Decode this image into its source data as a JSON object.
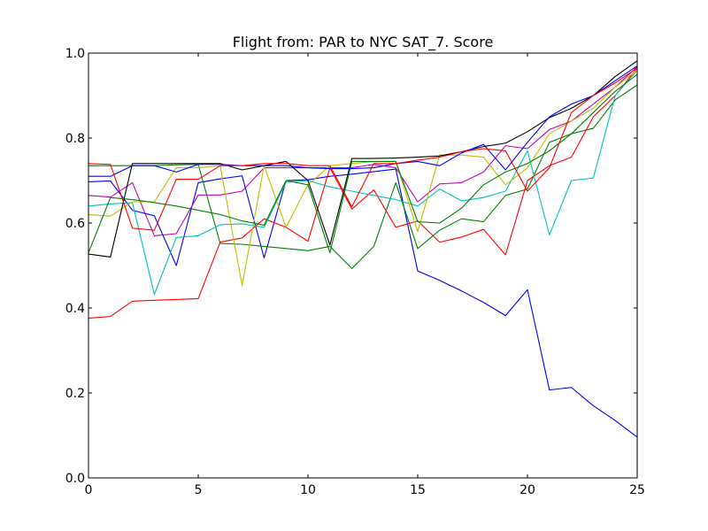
{
  "chart_data": {
    "type": "line",
    "title": "Flight from: PAR to NYC  SAT_7. Score",
    "xlabel": "",
    "ylabel": "",
    "xlim": [
      0,
      25
    ],
    "ylim": [
      0.0,
      1.0
    ],
    "xticks": [
      0,
      5,
      10,
      15,
      20,
      25
    ],
    "xtick_labels": [
      "0",
      "5",
      "10",
      "15",
      "20",
      "25"
    ],
    "yticks": [
      0.0,
      0.2,
      0.4,
      0.6,
      0.8,
      1.0
    ],
    "ytick_labels": [
      "0.0",
      "0.2",
      "0.4",
      "0.6",
      "0.8",
      "1.0"
    ],
    "grid": false,
    "x": [
      0,
      1,
      2,
      3,
      4,
      5,
      6,
      7,
      8,
      9,
      10,
      11,
      12,
      13,
      14,
      15,
      16,
      17,
      18,
      19,
      20,
      21,
      22,
      23,
      24,
      25
    ],
    "series": [
      {
        "color": "#0000ff",
        "values": [
          0.697,
          0.699,
          0.63,
          0.617,
          0.5,
          0.695,
          0.704,
          0.711,
          0.518,
          0.7,
          0.702,
          0.71,
          0.715,
          0.721,
          0.727,
          0.487,
          0.465,
          0.44,
          0.413,
          0.382,
          0.443,
          0.207,
          0.213,
          0.17,
          0.135,
          0.096
        ]
      },
      {
        "color": "#008000",
        "values": [
          0.735,
          0.735,
          0.735,
          0.735,
          0.737,
          0.738,
          0.552,
          0.55,
          0.545,
          0.54,
          0.535,
          0.545,
          0.493,
          0.545,
          0.695,
          0.54,
          0.583,
          0.61,
          0.603,
          0.665,
          0.68,
          0.79,
          0.81,
          0.823,
          0.89,
          0.925
        ]
      },
      {
        "color": "#ff0000",
        "values": [
          0.376,
          0.38,
          0.416,
          0.418,
          0.42,
          0.422,
          0.555,
          0.565,
          0.61,
          0.59,
          0.557,
          0.73,
          0.633,
          0.678,
          0.59,
          0.605,
          0.555,
          0.567,
          0.585,
          0.525,
          0.7,
          0.735,
          0.755,
          0.85,
          0.9,
          0.965
        ]
      },
      {
        "color": "#00bfbf",
        "values": [
          0.64,
          0.645,
          0.648,
          0.432,
          0.566,
          0.57,
          0.596,
          0.598,
          0.59,
          0.696,
          0.7,
          0.685,
          0.675,
          0.665,
          0.655,
          0.64,
          0.68,
          0.652,
          0.66,
          0.675,
          0.77,
          0.572,
          0.7,
          0.706,
          0.9,
          0.96
        ]
      },
      {
        "color": "#bf00bf",
        "values": [
          0.665,
          0.661,
          0.695,
          0.57,
          0.575,
          0.666,
          0.666,
          0.675,
          0.73,
          0.73,
          0.73,
          0.73,
          0.73,
          0.738,
          0.73,
          0.65,
          0.692,
          0.695,
          0.72,
          0.782,
          0.775,
          0.82,
          0.84,
          0.88,
          0.92,
          0.968
        ]
      },
      {
        "color": "#bfbf00",
        "values": [
          0.62,
          0.616,
          0.65,
          0.65,
          0.73,
          0.73,
          0.735,
          0.453,
          0.735,
          0.59,
          0.69,
          0.735,
          0.74,
          0.745,
          0.745,
          0.58,
          0.76,
          0.76,
          0.755,
          0.69,
          0.73,
          0.81,
          0.84,
          0.87,
          0.92,
          0.96
        ]
      },
      {
        "color": "#000000",
        "values": [
          0.527,
          0.52,
          0.74,
          0.74,
          0.74,
          0.74,
          0.74,
          0.725,
          0.735,
          0.745,
          0.7,
          0.548,
          0.752,
          0.752,
          0.753,
          0.755,
          0.758,
          0.768,
          0.78,
          0.788,
          0.815,
          0.848,
          0.87,
          0.9,
          0.945,
          0.982
        ]
      },
      {
        "color": "#0000ff",
        "values": [
          0.71,
          0.71,
          0.735,
          0.735,
          0.72,
          0.738,
          0.738,
          0.735,
          0.735,
          0.735,
          0.73,
          0.728,
          0.728,
          0.73,
          0.74,
          0.745,
          0.735,
          0.765,
          0.785,
          0.725,
          0.79,
          0.85,
          0.88,
          0.9,
          0.935,
          0.97
        ]
      },
      {
        "color": "#008000",
        "values": [
          0.53,
          0.66,
          0.655,
          0.648,
          0.64,
          0.63,
          0.62,
          0.605,
          0.595,
          0.7,
          0.69,
          0.53,
          0.745,
          0.745,
          0.745,
          0.603,
          0.6,
          0.635,
          0.69,
          0.72,
          0.74,
          0.77,
          0.81,
          0.86,
          0.91,
          0.95
        ]
      },
      {
        "color": "#ff0000",
        "values": [
          0.74,
          0.738,
          0.588,
          0.583,
          0.703,
          0.703,
          0.735,
          0.735,
          0.74,
          0.74,
          0.735,
          0.735,
          0.638,
          0.74,
          0.74,
          0.748,
          0.755,
          0.768,
          0.775,
          0.77,
          0.675,
          0.73,
          0.86,
          0.9,
          0.93,
          0.965
        ]
      }
    ]
  }
}
